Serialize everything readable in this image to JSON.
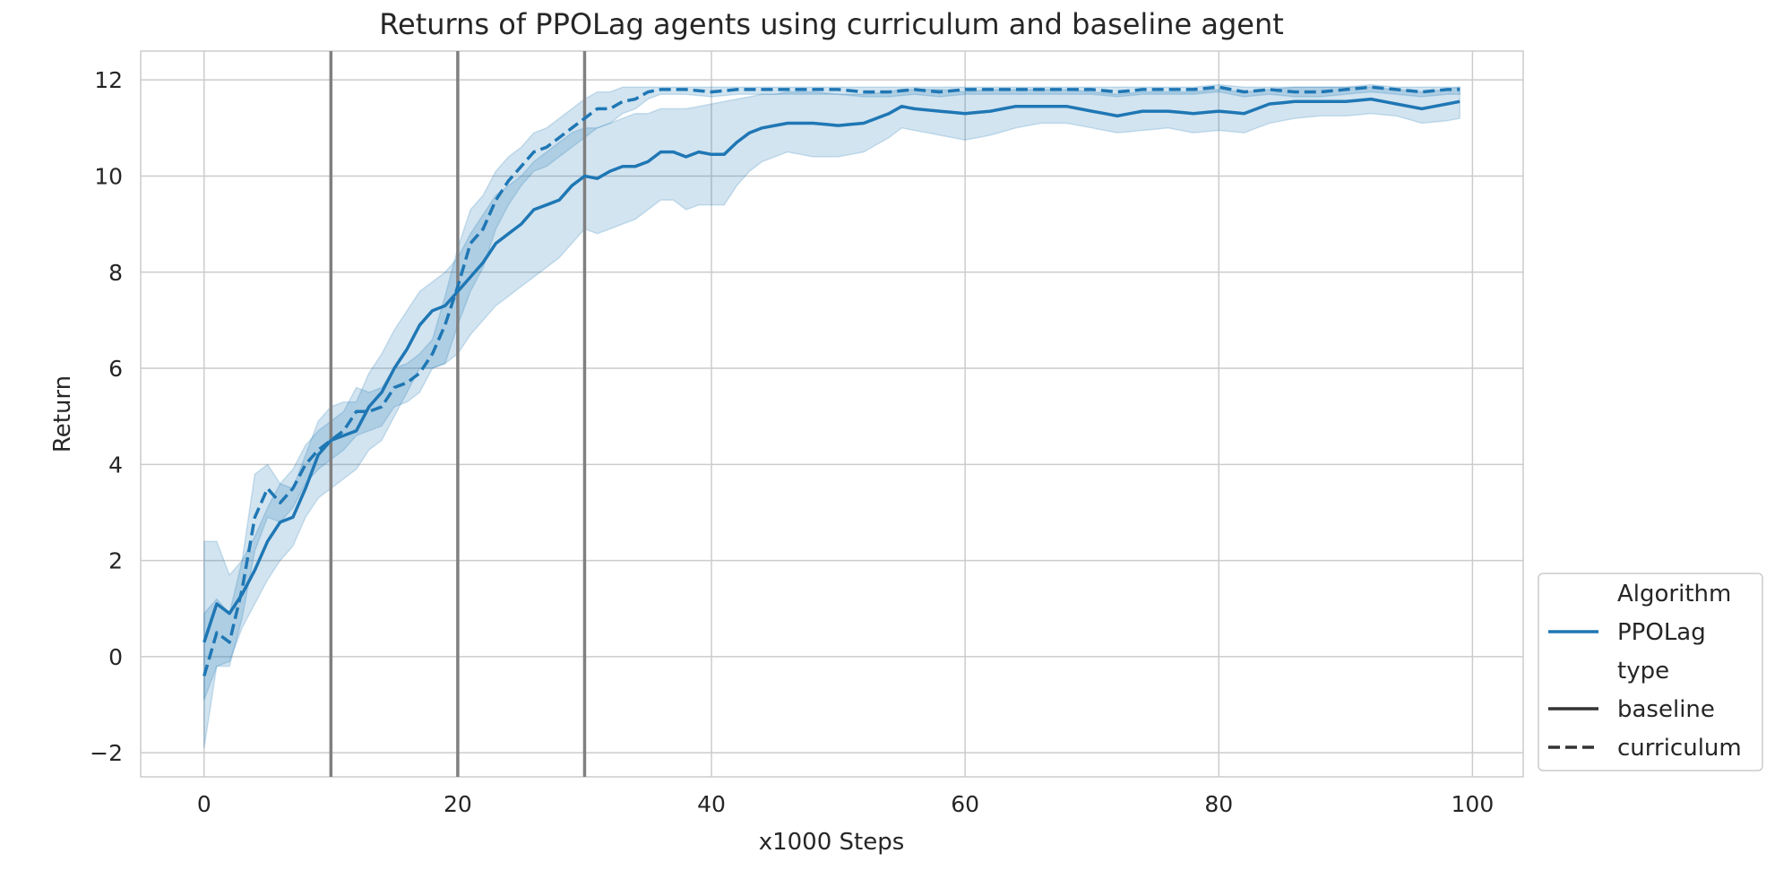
{
  "chart_data": {
    "type": "line",
    "title": "Returns of PPOLag agents using curriculum and baseline agent",
    "xlabel": "x1000 Steps",
    "ylabel": "Return",
    "xlim": [
      -5,
      104
    ],
    "ylim": [
      -2.5,
      12.6
    ],
    "xticks": [
      0,
      20,
      40,
      60,
      80,
      100
    ],
    "yticks": [
      -2,
      0,
      2,
      4,
      6,
      8,
      10,
      12
    ],
    "grid": true,
    "vertical_lines": [
      10,
      20,
      30
    ],
    "colors": {
      "series": "#1f77b4",
      "band": "#1f77b4",
      "vline": "#808080",
      "grid": "#cccccc",
      "legend_style": "#333333"
    },
    "legend": {
      "placement": "lower-right-outside",
      "entries": [
        {
          "label": "Algorithm",
          "kind": "header"
        },
        {
          "label": "PPOLag",
          "kind": "color"
        },
        {
          "label": "type",
          "kind": "header"
        },
        {
          "label": "baseline",
          "kind": "solid"
        },
        {
          "label": "curriculum",
          "kind": "dashed"
        }
      ]
    },
    "series": [
      {
        "algorithm": "PPOLag",
        "type": "baseline",
        "style": "solid",
        "anchors": {
          "x": [
            0,
            1,
            2,
            3,
            4,
            5,
            6,
            7,
            8,
            9,
            10,
            11,
            12,
            13,
            14,
            15,
            16,
            17,
            18,
            19,
            20,
            21,
            22,
            23,
            24,
            25,
            26,
            27,
            28,
            29,
            30,
            31,
            32,
            33,
            34,
            35,
            36,
            37,
            38,
            39,
            40,
            41,
            42,
            43,
            44,
            45,
            46,
            47,
            48,
            50,
            52,
            54,
            55,
            56,
            58,
            60,
            62,
            64,
            66,
            68,
            70,
            72,
            74,
            76,
            78,
            80,
            82,
            84,
            86,
            88,
            90,
            92,
            94,
            96,
            98,
            99
          ],
          "y": [
            0.3,
            1.1,
            0.9,
            1.3,
            1.8,
            2.4,
            2.8,
            2.9,
            3.5,
            4.2,
            4.5,
            4.6,
            4.7,
            5.2,
            5.5,
            6.0,
            6.4,
            6.9,
            7.2,
            7.3,
            7.6,
            7.9,
            8.2,
            8.6,
            8.8,
            9.0,
            9.3,
            9.4,
            9.5,
            9.8,
            10.0,
            9.95,
            10.1,
            10.2,
            10.2,
            10.3,
            10.5,
            10.5,
            10.4,
            10.5,
            10.45,
            10.45,
            10.7,
            10.9,
            11.0,
            11.05,
            11.1,
            11.1,
            11.1,
            11.05,
            11.1,
            11.3,
            11.45,
            11.4,
            11.35,
            11.3,
            11.35,
            11.45,
            11.45,
            11.45,
            11.35,
            11.25,
            11.35,
            11.35,
            11.3,
            11.35,
            11.3,
            11.5,
            11.55,
            11.55,
            11.55,
            11.6,
            11.5,
            11.4,
            11.5,
            11.55
          ],
          "lower": [
            -0.9,
            -0.2,
            -0.1,
            0.6,
            1.1,
            1.6,
            2.0,
            2.3,
            2.9,
            3.3,
            3.5,
            3.7,
            3.9,
            4.3,
            4.5,
            5.0,
            5.5,
            6.0,
            6.0,
            6.1,
            6.3,
            6.7,
            7.0,
            7.3,
            7.5,
            7.7,
            7.9,
            8.1,
            8.3,
            8.6,
            8.9,
            8.8,
            8.9,
            9.0,
            9.1,
            9.3,
            9.5,
            9.5,
            9.3,
            9.4,
            9.4,
            9.4,
            9.8,
            10.1,
            10.3,
            10.4,
            10.5,
            10.45,
            10.4,
            10.4,
            10.5,
            10.8,
            11.0,
            10.95,
            10.85,
            10.75,
            10.85,
            11.0,
            11.1,
            11.1,
            11.0,
            10.9,
            10.95,
            11.0,
            10.9,
            10.95,
            10.9,
            11.1,
            11.2,
            11.25,
            11.25,
            11.3,
            11.25,
            11.1,
            11.15,
            11.2
          ],
          "upper": [
            2.4,
            2.4,
            1.7,
            2.0,
            2.5,
            3.1,
            3.6,
            3.5,
            4.2,
            4.9,
            5.2,
            5.3,
            5.3,
            5.9,
            6.3,
            6.8,
            7.2,
            7.6,
            7.8,
            8.0,
            8.3,
            8.8,
            9.2,
            9.6,
            9.8,
            10.0,
            10.3,
            10.5,
            10.7,
            10.9,
            11.0,
            11.0,
            11.1,
            11.2,
            11.3,
            11.3,
            11.4,
            11.4,
            11.4,
            11.45,
            11.5,
            11.55,
            11.6,
            11.65,
            11.7,
            11.7,
            11.75,
            11.75,
            11.75,
            11.7,
            11.7,
            11.75,
            11.8,
            11.8,
            11.8,
            11.75,
            11.8,
            11.8,
            11.8,
            11.8,
            11.75,
            11.7,
            11.75,
            11.75,
            11.75,
            11.8,
            11.75,
            11.8,
            11.85,
            11.85,
            11.85,
            11.85,
            11.8,
            11.75,
            11.8,
            11.85
          ]
        }
      },
      {
        "algorithm": "PPOLag",
        "type": "curriculum",
        "style": "dashed",
        "anchors": {
          "x": [
            0,
            1,
            2,
            3,
            4,
            5,
            6,
            7,
            8,
            9,
            10,
            11,
            12,
            13,
            14,
            15,
            16,
            17,
            18,
            19,
            20,
            21,
            22,
            23,
            24,
            25,
            26,
            27,
            28,
            29,
            30,
            31,
            32,
            33,
            34,
            35,
            36,
            38,
            40,
            42,
            44,
            46,
            48,
            50,
            52,
            54,
            56,
            58,
            60,
            62,
            64,
            66,
            68,
            70,
            72,
            74,
            76,
            78,
            80,
            82,
            84,
            86,
            88,
            90,
            92,
            94,
            96,
            98,
            99
          ],
          "y": [
            -0.4,
            0.5,
            0.3,
            1.4,
            2.9,
            3.5,
            3.2,
            3.5,
            4.0,
            4.3,
            4.5,
            4.7,
            5.1,
            5.1,
            5.2,
            5.6,
            5.7,
            5.9,
            6.3,
            6.9,
            7.7,
            8.6,
            8.9,
            9.5,
            9.9,
            10.2,
            10.5,
            10.6,
            10.8,
            11.0,
            11.2,
            11.4,
            11.4,
            11.55,
            11.6,
            11.75,
            11.8,
            11.8,
            11.75,
            11.8,
            11.8,
            11.8,
            11.8,
            11.8,
            11.75,
            11.75,
            11.8,
            11.75,
            11.8,
            11.8,
            11.8,
            11.8,
            11.8,
            11.8,
            11.75,
            11.8,
            11.8,
            11.8,
            11.85,
            11.75,
            11.8,
            11.75,
            11.75,
            11.8,
            11.85,
            11.8,
            11.75,
            11.8,
            11.8
          ],
          "lower": [
            -1.9,
            -0.2,
            -0.2,
            0.8,
            2.2,
            2.9,
            2.8,
            3.1,
            3.6,
            3.9,
            4.1,
            4.3,
            4.6,
            4.7,
            4.8,
            5.2,
            5.3,
            5.5,
            6.0,
            6.1,
            6.9,
            7.6,
            8.1,
            8.9,
            9.4,
            9.8,
            10.1,
            10.2,
            10.4,
            10.6,
            10.8,
            11.0,
            11.1,
            11.3,
            11.4,
            11.6,
            11.7,
            11.7,
            11.65,
            11.7,
            11.7,
            11.7,
            11.7,
            11.7,
            11.65,
            11.65,
            11.7,
            11.65,
            11.7,
            11.7,
            11.7,
            11.7,
            11.7,
            11.7,
            11.65,
            11.7,
            11.7,
            11.7,
            11.75,
            11.65,
            11.7,
            11.65,
            11.65,
            11.7,
            11.75,
            11.7,
            11.65,
            11.7,
            11.7
          ],
          "upper": [
            0.9,
            1.2,
            0.9,
            2.0,
            3.8,
            4.0,
            3.6,
            3.9,
            4.4,
            4.7,
            4.9,
            5.1,
            5.6,
            5.5,
            5.6,
            6.0,
            6.1,
            6.3,
            6.6,
            7.5,
            8.5,
            9.3,
            9.6,
            10.1,
            10.4,
            10.6,
            10.9,
            11.0,
            11.2,
            11.4,
            11.6,
            11.75,
            11.75,
            11.85,
            11.85,
            11.85,
            11.85,
            11.85,
            11.85,
            11.85,
            11.85,
            11.85,
            11.85,
            11.85,
            11.85,
            11.85,
            11.85,
            11.85,
            11.85,
            11.85,
            11.85,
            11.85,
            11.85,
            11.85,
            11.85,
            11.85,
            11.85,
            11.85,
            11.9,
            11.85,
            11.85,
            11.85,
            11.85,
            11.85,
            11.9,
            11.85,
            11.85,
            11.85,
            11.85
          ]
        }
      }
    ]
  }
}
